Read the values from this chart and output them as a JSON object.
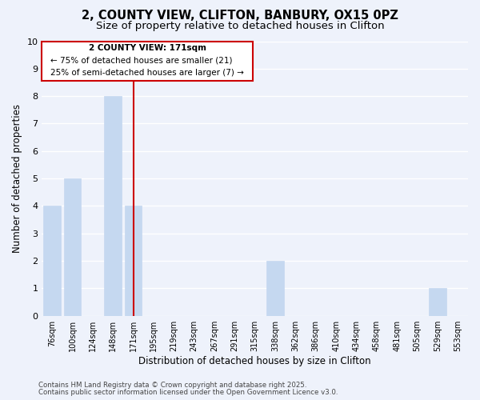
{
  "title_line1": "2, COUNTY VIEW, CLIFTON, BANBURY, OX15 0PZ",
  "title_line2": "Size of property relative to detached houses in Clifton",
  "xlabel": "Distribution of detached houses by size in Clifton",
  "ylabel": "Number of detached properties",
  "categories": [
    "76sqm",
    "100sqm",
    "124sqm",
    "148sqm",
    "171sqm",
    "195sqm",
    "219sqm",
    "243sqm",
    "267sqm",
    "291sqm",
    "315sqm",
    "338sqm",
    "362sqm",
    "386sqm",
    "410sqm",
    "434sqm",
    "458sqm",
    "481sqm",
    "505sqm",
    "529sqm",
    "553sqm"
  ],
  "values": [
    4,
    5,
    0,
    8,
    4,
    0,
    0,
    0,
    0,
    0,
    0,
    2,
    0,
    0,
    0,
    0,
    0,
    0,
    0,
    1,
    0
  ],
  "bar_color": "#c5d8f0",
  "bar_edge_color": "#c5d8f0",
  "highlight_index": 4,
  "highlight_line_color": "#cc0000",
  "ylim": [
    0,
    10
  ],
  "yticks": [
    0,
    1,
    2,
    3,
    4,
    5,
    6,
    7,
    8,
    9,
    10
  ],
  "annotation_box_text_line1": "2 COUNTY VIEW: 171sqm",
  "annotation_box_text_line2": "← 75% of detached houses are smaller (21)",
  "annotation_box_text_line3": "25% of semi-detached houses are larger (7) →",
  "annotation_box_edge_color": "#cc0000",
  "annotation_box_facecolor": "#ffffff",
  "footer_line1": "Contains HM Land Registry data © Crown copyright and database right 2025.",
  "footer_line2": "Contains public sector information licensed under the Open Government Licence v3.0.",
  "background_color": "#eef2fb",
  "grid_color": "#ffffff",
  "title_fontsize": 10.5,
  "subtitle_fontsize": 9.5
}
